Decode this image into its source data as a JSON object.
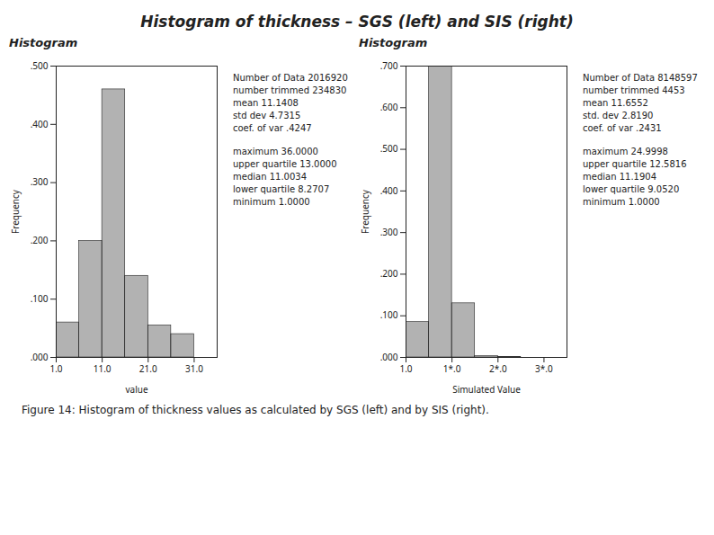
{
  "title": "Histogram of thickness – SGS (left) and SIS (right)",
  "caption": "Figure 14: Histogram of thickness values as calculated by SGS (left) and by SIS (right).",
  "chart_data": [
    {
      "type": "histogram",
      "title": "Histogram",
      "xlabel": "value",
      "ylabel": "Frequency",
      "bins": [
        1.0,
        6.0,
        11.0,
        16.0,
        21.0,
        26.0,
        31.0,
        36.0
      ],
      "values": [
        0.06,
        0.2,
        0.46,
        0.14,
        0.055,
        0.04,
        0.0
      ],
      "xlim": [
        1.0,
        36.0
      ],
      "ylim": [
        0.0,
        0.5
      ],
      "xticks": [
        {
          "value": 1.0,
          "label": "1.0"
        },
        {
          "value": 11.0,
          "label": "11.0"
        },
        {
          "value": 21.0,
          "label": "21.0"
        },
        {
          "value": 31.0,
          "label": "31.0"
        }
      ],
      "yticks": [
        {
          "value": 0.0,
          "label": ".000"
        },
        {
          "value": 0.1,
          "label": ".100"
        },
        {
          "value": 0.2,
          "label": ".200"
        },
        {
          "value": 0.3,
          "label": ".300"
        },
        {
          "value": 0.4,
          "label": ".400"
        },
        {
          "value": 0.5,
          "label": ".500"
        }
      ],
      "annotations": [
        [
          "Number of Data  2016920",
          "number trimmed  234830",
          "mean  11.1408",
          "std dev  4.7315",
          "coef. of var  .4247"
        ],
        [
          "maximum  36.0000",
          "upper quartile  13.0000",
          "median  11.0034",
          "lower quartile  8.2707",
          "minimum  1.0000"
        ]
      ]
    },
    {
      "type": "histogram",
      "title": "Histogram",
      "xlabel": "Simulated Value",
      "ylabel": "Frequency",
      "bins": [
        1.0,
        6.0,
        11.0,
        16.0,
        21.0,
        26.0,
        31.0,
        36.0
      ],
      "values": [
        0.085,
        0.7,
        0.13,
        0.003,
        0.001,
        0.0,
        0.0
      ],
      "xlim": [
        1.0,
        36.0
      ],
      "ylim": [
        0.0,
        0.7
      ],
      "xticks": [
        {
          "value": 1.0,
          "label": "1.0"
        },
        {
          "value": 11.0,
          "label": "1*.0"
        },
        {
          "value": 21.0,
          "label": "2*.0"
        },
        {
          "value": 31.0,
          "label": "3*.0"
        }
      ],
      "yticks": [
        {
          "value": 0.0,
          "label": ".000"
        },
        {
          "value": 0.1,
          "label": ".100"
        },
        {
          "value": 0.2,
          "label": ".200"
        },
        {
          "value": 0.3,
          "label": ".300"
        },
        {
          "value": 0.4,
          "label": ".400"
        },
        {
          "value": 0.5,
          "label": ".500"
        },
        {
          "value": 0.6,
          "label": ".600"
        },
        {
          "value": 0.7,
          "label": ".700"
        }
      ],
      "annotations": [
        [
          "Number of Data  8148597",
          "number trimmed  4453",
          "mean  11.6552",
          "std. dev  2.8190",
          "coef. of var  .2431"
        ],
        [
          "maximum  24.9998",
          "upper quartile  12.5816",
          "median  11.1904",
          "lower quartile  9.0520",
          "minimum  1.0000"
        ]
      ]
    }
  ]
}
